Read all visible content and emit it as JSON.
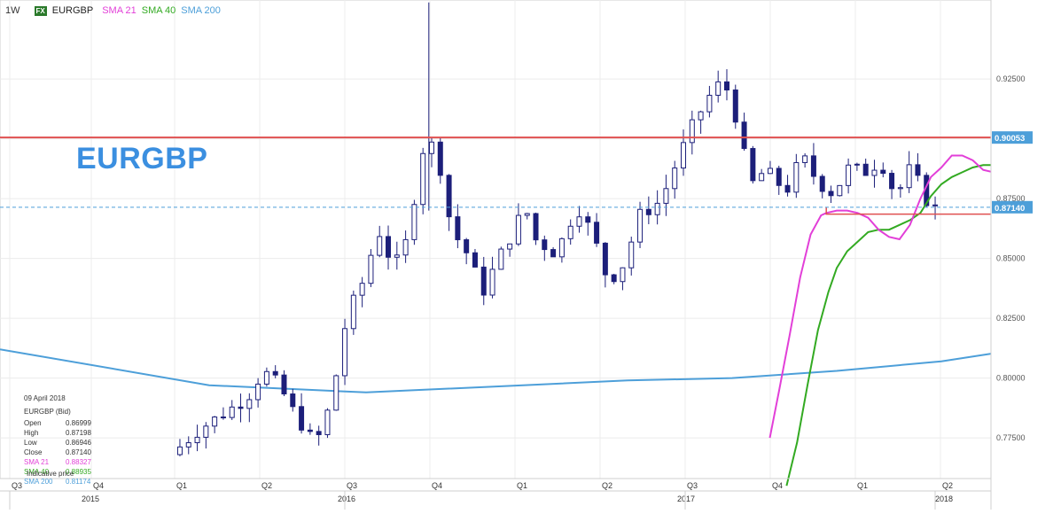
{
  "header": {
    "timeframe": "1W",
    "fx_badge": "FX",
    "symbol": "EURGBP",
    "indicators": [
      {
        "label": "SMA 21",
        "color": "#e23fd8"
      },
      {
        "label": "SMA 40",
        "color": "#33aa22"
      },
      {
        "label": "SMA 200",
        "color": "#4d9fd9"
      }
    ]
  },
  "big_title": "EURGBP",
  "info_box": {
    "date": "09 April 2018",
    "title": "EURGBP (Bid)",
    "rows": [
      {
        "k": "Open",
        "v": "0.86999"
      },
      {
        "k": "High",
        "v": "0.87198"
      },
      {
        "k": "Low",
        "v": "0.86946"
      },
      {
        "k": "Close",
        "v": "0.87140"
      },
      {
        "k": "SMA 21",
        "v": "0.88327"
      },
      {
        "k": "SMA 40",
        "v": "0.88935"
      },
      {
        "k": "SMA 200",
        "v": "0.81174"
      }
    ],
    "footer": "Indicative price"
  },
  "chart_data": {
    "type": "candlestick",
    "ylim": [
      0.758,
      0.958
    ],
    "y_ticks": [
      "0.92500",
      "0.90000",
      "0.87500",
      "0.85000",
      "0.82500",
      "0.80000",
      "0.77500"
    ],
    "quarters": [
      "Q3",
      "Q4",
      "Q1",
      "Q2",
      "Q3",
      "Q4",
      "Q1",
      "Q2",
      "Q3",
      "Q4",
      "Q1",
      "Q2"
    ],
    "years": [
      "2015",
      "2016",
      "2017",
      "2018"
    ],
    "resistance_level": 0.90053,
    "resistance_label": "0.90053",
    "support_level": 0.8685,
    "current_price": 0.8714,
    "current_label": "0.87140",
    "colors": {
      "up": "#ffffff",
      "down": "#1c1f7a",
      "resistance": "#e05050",
      "current": "#4d9fd9"
    },
    "sma21": [
      [
        0.736,
        0.775
      ],
      [
        0.745,
        0.795
      ],
      [
        0.755,
        0.818
      ],
      [
        0.765,
        0.842
      ],
      [
        0.775,
        0.86
      ],
      [
        0.785,
        0.868
      ],
      [
        0.79,
        0.869
      ],
      [
        0.8,
        0.87
      ],
      [
        0.81,
        0.87
      ],
      [
        0.82,
        0.869
      ],
      [
        0.83,
        0.867
      ],
      [
        0.84,
        0.862
      ],
      [
        0.85,
        0.859
      ],
      [
        0.86,
        0.858
      ],
      [
        0.87,
        0.864
      ],
      [
        0.88,
        0.875
      ],
      [
        0.89,
        0.884
      ],
      [
        0.9,
        0.888
      ],
      [
        0.91,
        0.893
      ],
      [
        0.92,
        0.893
      ],
      [
        0.93,
        0.891
      ],
      [
        0.94,
        0.887
      ],
      [
        0.95,
        0.886
      ],
      [
        0.96,
        0.883
      ]
    ],
    "sma40": [
      [
        0.752,
        0.755
      ],
      [
        0.762,
        0.773
      ],
      [
        0.772,
        0.797
      ],
      [
        0.782,
        0.82
      ],
      [
        0.792,
        0.836
      ],
      [
        0.8,
        0.846
      ],
      [
        0.81,
        0.853
      ],
      [
        0.82,
        0.857
      ],
      [
        0.83,
        0.861
      ],
      [
        0.84,
        0.862
      ],
      [
        0.85,
        0.862
      ],
      [
        0.86,
        0.864
      ],
      [
        0.87,
        0.866
      ],
      [
        0.88,
        0.869
      ],
      [
        0.89,
        0.876
      ],
      [
        0.9,
        0.881
      ],
      [
        0.91,
        0.884
      ],
      [
        0.92,
        0.886
      ],
      [
        0.93,
        0.888
      ],
      [
        0.94,
        0.889
      ],
      [
        0.95,
        0.889
      ],
      [
        0.96,
        0.889
      ]
    ],
    "sma200": [
      [
        0.0,
        0.812
      ],
      [
        0.2,
        0.797
      ],
      [
        0.35,
        0.794
      ],
      [
        0.5,
        0.797
      ],
      [
        0.6,
        0.799
      ],
      [
        0.7,
        0.8
      ],
      [
        0.8,
        0.803
      ],
      [
        0.9,
        0.807
      ],
      [
        0.96,
        0.811
      ]
    ]
  }
}
